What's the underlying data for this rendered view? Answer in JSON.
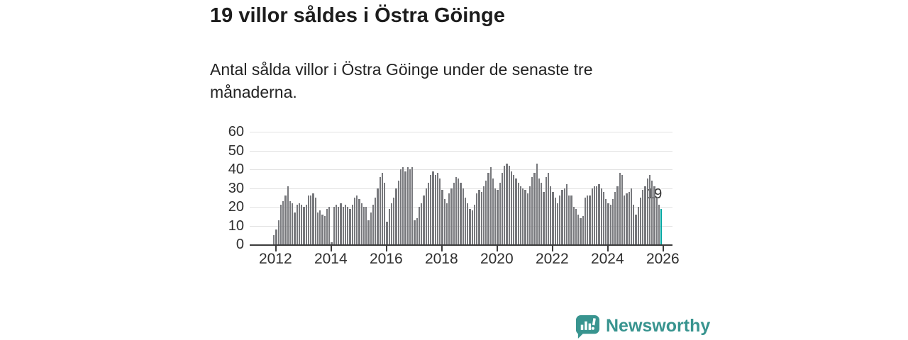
{
  "header": {
    "title": "19 villor såldes i Östra Göinge",
    "subtitle": "Antal sålda villor i Östra Göinge under de senaste tre månaderna."
  },
  "branding": {
    "name": "Newsworthy",
    "color": "#38948F",
    "icon": "bar-chart-speech-bubble"
  },
  "chart_data": {
    "type": "bar",
    "title": "19 villor såldes i Östra Göinge",
    "subtitle": "Antal sålda villor i Östra Göinge under de senaste tre månaderna.",
    "frequency": "monthly",
    "x_start": "2011-12",
    "x_end": "2025-12",
    "x_tick_labels": [
      "2012",
      "2014",
      "2016",
      "2018",
      "2020",
      "2022",
      "2024",
      "2026"
    ],
    "ylabel": "",
    "xlabel": "",
    "ylim": [
      0,
      60
    ],
    "y_ticks": [
      0,
      10,
      20,
      30,
      40,
      50,
      60
    ],
    "grid": true,
    "bar_color": "#77787C",
    "highlight_color": "#00A5A0",
    "highlight": "last",
    "annotation": {
      "text": "19",
      "target": "last-bar"
    },
    "values": [
      5,
      8,
      13,
      21,
      23,
      26,
      31,
      23,
      22,
      17,
      21,
      22,
      21,
      20,
      21,
      26,
      26,
      27,
      25,
      17,
      18,
      16,
      15,
      19,
      20,
      1,
      20,
      21,
      20,
      22,
      20,
      21,
      20,
      19,
      21,
      25,
      26,
      24,
      22,
      20,
      20,
      13,
      17,
      21,
      25,
      30,
      36,
      38,
      33,
      12,
      19,
      22,
      25,
      30,
      34,
      40,
      41,
      39,
      41,
      40,
      41,
      13,
      14,
      20,
      22,
      26,
      30,
      33,
      37,
      39,
      37,
      38,
      35,
      29,
      24,
      22,
      27,
      30,
      33,
      36,
      35,
      33,
      30,
      25,
      22,
      19,
      18,
      21,
      27,
      29,
      28,
      31,
      34,
      38,
      41,
      35,
      30,
      29,
      33,
      38,
      42,
      43,
      42,
      39,
      37,
      35,
      33,
      31,
      30,
      29,
      27,
      31,
      36,
      38,
      43,
      35,
      33,
      28,
      36,
      38,
      31,
      28,
      25,
      22,
      26,
      29,
      30,
      32,
      26,
      26,
      20,
      19,
      16,
      14,
      15,
      25,
      26,
      26,
      30,
      31,
      31,
      32,
      30,
      28,
      24,
      22,
      21,
      24,
      28,
      31,
      38,
      37,
      26,
      27,
      28,
      30,
      21,
      16,
      20,
      25,
      29,
      31,
      35,
      37,
      34,
      31,
      25,
      21,
      19
    ]
  }
}
